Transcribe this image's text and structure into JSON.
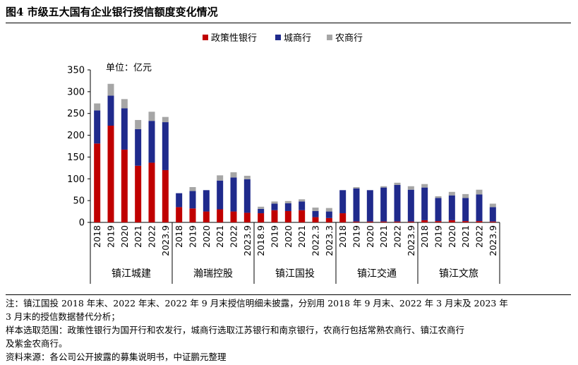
{
  "figure": {
    "title": "图4  市级五大国有企业银行授信额度变化情况"
  },
  "chart_data": {
    "type": "bar",
    "stacked": true,
    "unit_label": "单位：亿元",
    "ylim": [
      0,
      350
    ],
    "yticks": [
      0,
      50,
      100,
      150,
      200,
      250,
      300,
      350
    ],
    "legend": {
      "position": "top-center"
    },
    "series": [
      {
        "name": "政策性银行",
        "color": "#c00000"
      },
      {
        "name": "城商行",
        "color": "#1f2a8c"
      },
      {
        "name": "农商行",
        "color": "#a6a6a6"
      }
    ],
    "groups": [
      {
        "name": "镇江城建",
        "bars": [
          {
            "label": "2018",
            "values": [
              181,
              76,
              16
            ]
          },
          {
            "label": "2019",
            "values": [
              222,
              69,
              27
            ]
          },
          {
            "label": "2020",
            "values": [
              167,
              95,
              21
            ]
          },
          {
            "label": "2021",
            "values": [
              130,
              84,
              21
            ]
          },
          {
            "label": "2022",
            "values": [
              137,
              96,
              21
            ]
          },
          {
            "label": "2023.9",
            "values": [
              120,
              110,
              12
            ]
          }
        ]
      },
      {
        "name": "瀚瑞控股",
        "bars": [
          {
            "label": "2018",
            "values": [
              35,
              32,
              0
            ]
          },
          {
            "label": "2019",
            "values": [
              32,
              40,
              9
            ]
          },
          {
            "label": "2020",
            "values": [
              25,
              49,
              0
            ]
          },
          {
            "label": "2021",
            "values": [
              30,
              66,
              12
            ]
          },
          {
            "label": "2022",
            "values": [
              25,
              78,
              12
            ]
          },
          {
            "label": "2023.9",
            "values": [
              22,
              77,
              8
            ]
          }
        ]
      },
      {
        "name": "镇江国投",
        "bars": [
          {
            "label": "2018.9",
            "values": [
              21,
              10,
              5
            ]
          },
          {
            "label": "2019",
            "values": [
              28,
              15,
              5
            ]
          },
          {
            "label": "2020",
            "values": [
              26,
              18,
              5
            ]
          },
          {
            "label": "2021",
            "values": [
              28,
              20,
              5
            ]
          },
          {
            "label": "2022.3",
            "values": [
              12,
              14,
              8
            ]
          },
          {
            "label": "2023.3",
            "values": [
              10,
              15,
              8
            ]
          }
        ]
      },
      {
        "name": "镇江交通",
        "bars": [
          {
            "label": "2018",
            "values": [
              21,
              53,
              0
            ]
          },
          {
            "label": "2019",
            "values": [
              2,
              76,
              3
            ]
          },
          {
            "label": "2020",
            "values": [
              2,
              72,
              0
            ]
          },
          {
            "label": "2021",
            "values": [
              2,
              78,
              3
            ]
          },
          {
            "label": "2022",
            "values": [
              2,
              84,
              5
            ]
          },
          {
            "label": "2023.9",
            "values": [
              2,
              73,
              8
            ]
          }
        ]
      },
      {
        "name": "镇江文旅",
        "bars": [
          {
            "label": "2018",
            "values": [
              5,
              75,
              8
            ]
          },
          {
            "label": "2019",
            "values": [
              3,
              53,
              4
            ]
          },
          {
            "label": "2020",
            "values": [
              5,
              57,
              8
            ]
          },
          {
            "label": "2021",
            "values": [
              3,
              53,
              9
            ]
          },
          {
            "label": "2022",
            "values": [
              3,
              61,
              11
            ]
          },
          {
            "label": "2023.9",
            "values": [
              2,
              33,
              8
            ]
          }
        ]
      }
    ]
  },
  "notes": [
    "注：镇江国投 2018 年末、2022 年末、2022 年 9 月末授信明细未披露，分别用 2018 年 9 月末、2022 年 3 月末及 2023 年",
    "3 月末的授信数据替代分析；",
    "样本选取范围：政策性银行为国开行和农发行，城商行选取江苏银行和南京银行，农商行包括常熟农商行、镇江农商行",
    "及紫金农商行。",
    "资料来源：各公司公开披露的募集说明书，中证鹏元整理"
  ]
}
